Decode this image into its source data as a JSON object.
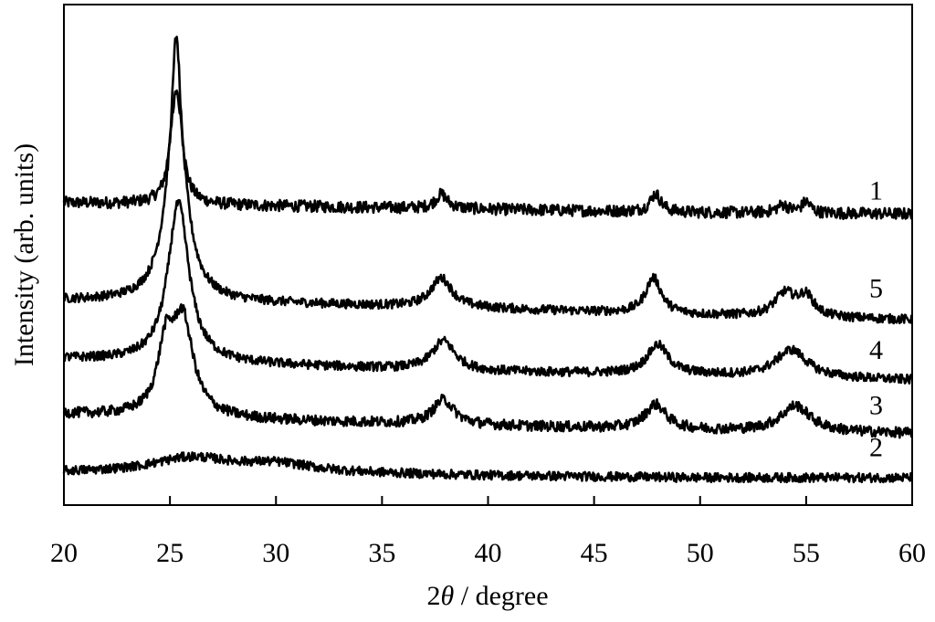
{
  "chart_data": {
    "type": "line",
    "title": "",
    "xlabel_prefix": "2",
    "xlabel_theta": "θ",
    "xlabel_suffix": " / degree",
    "ylabel": "Intensity (arb. units)",
    "xlim": [
      20,
      60
    ],
    "xticks": [
      "20",
      "25",
      "30",
      "35",
      "40",
      "45",
      "50",
      "55",
      "60"
    ],
    "y_ticks_labeled": false,
    "grid": false,
    "legend": "none",
    "line_color": "#000000",
    "series": [
      {
        "name": "1",
        "baseline": [
          [
            20,
            3.55
          ],
          [
            30,
            3.5
          ],
          [
            40,
            3.45
          ],
          [
            50,
            3.4
          ],
          [
            60,
            3.38
          ]
        ],
        "peaks": [
          [
            25.3,
            2.6,
            0.25
          ],
          [
            37.8,
            0.22,
            0.35
          ],
          [
            47.9,
            0.28,
            0.3
          ],
          [
            53.9,
            0.12,
            0.35
          ],
          [
            55.0,
            0.17,
            0.25
          ]
        ],
        "noise": 0.09,
        "label": "1",
        "label_x": 58.3,
        "label_y": 3.6
      },
      {
        "name": "5",
        "baseline": [
          [
            20,
            2.05
          ],
          [
            30,
            2.0
          ],
          [
            40,
            1.92
          ],
          [
            50,
            1.82
          ],
          [
            60,
            1.75
          ]
        ],
        "peaks": [
          [
            25.3,
            3.2,
            0.55
          ],
          [
            37.8,
            0.45,
            0.6
          ],
          [
            47.8,
            0.55,
            0.45
          ],
          [
            54.0,
            0.35,
            0.6
          ],
          [
            55.0,
            0.3,
            0.45
          ]
        ],
        "noise": 0.07,
        "label": "5",
        "label_x": 58.3,
        "label_y": 2.1
      },
      {
        "name": "4",
        "baseline": [
          [
            20,
            1.15
          ],
          [
            30,
            1.05
          ],
          [
            40,
            0.95
          ],
          [
            50,
            0.9
          ],
          [
            60,
            0.82
          ]
        ],
        "peaks": [
          [
            25.4,
            2.45,
            0.6
          ],
          [
            37.9,
            0.45,
            0.65
          ],
          [
            48.0,
            0.45,
            0.6
          ],
          [
            54.3,
            0.42,
            0.9
          ]
        ],
        "noise": 0.07,
        "label": "4",
        "label_x": 58.3,
        "label_y": 1.15
      },
      {
        "name": "3",
        "baseline": [
          [
            20,
            0.3
          ],
          [
            30,
            0.2
          ],
          [
            40,
            0.12
          ],
          [
            50,
            0.05
          ],
          [
            60,
            0.0
          ]
        ],
        "peaks": [
          [
            24.8,
            0.95,
            0.45
          ],
          [
            25.6,
            1.45,
            0.6
          ],
          [
            37.9,
            0.38,
            0.6
          ],
          [
            47.9,
            0.38,
            0.6
          ],
          [
            54.5,
            0.4,
            0.85
          ]
        ],
        "noise": 0.08,
        "label": "3",
        "label_x": 58.3,
        "label_y": 0.3
      },
      {
        "name": "2",
        "baseline": [
          [
            20,
            -0.6
          ],
          [
            30,
            -0.6
          ],
          [
            40,
            -0.65
          ],
          [
            50,
            -0.68
          ],
          [
            60,
            -0.68
          ]
        ],
        "peaks": [
          [
            26.0,
            0.22,
            2.2
          ],
          [
            30.0,
            0.12,
            2.2
          ]
        ],
        "noise": 0.07,
        "label": "2",
        "label_x": 58.3,
        "label_y": -0.35
      }
    ]
  }
}
